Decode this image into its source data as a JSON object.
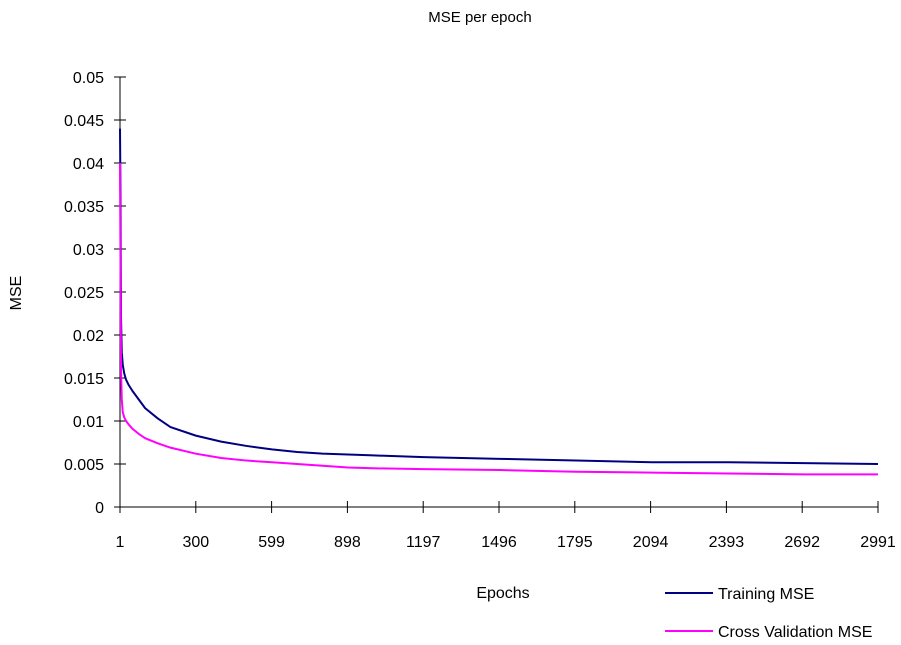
{
  "chart_data": {
    "type": "line",
    "title": "MSE per epoch",
    "xlabel": "Epochs",
    "ylabel": "MSE",
    "xlim": [
      1,
      2991
    ],
    "ylim": [
      0,
      0.05
    ],
    "x_ticks": [
      1,
      300,
      599,
      898,
      1197,
      1496,
      1795,
      2094,
      2393,
      2692,
      2991
    ],
    "y_ticks": [
      "0",
      "0.005",
      "0.01",
      "0.015",
      "0.02",
      "0.025",
      "0.03",
      "0.035",
      "0.04",
      "0.045",
      "0.05"
    ],
    "grid": false,
    "legend_position": "bottom-right",
    "series": [
      {
        "name": "Training MSE",
        "color": "#000080",
        "x": [
          1,
          3,
          5,
          8,
          12,
          18,
          25,
          35,
          50,
          75,
          100,
          150,
          200,
          300,
          400,
          500,
          600,
          700,
          800,
          900,
          1000,
          1200,
          1500,
          1800,
          2100,
          2400,
          2700,
          2991
        ],
        "y": [
          0.044,
          0.036,
          0.022,
          0.018,
          0.0165,
          0.0155,
          0.0148,
          0.0142,
          0.0135,
          0.0125,
          0.0115,
          0.0103,
          0.0093,
          0.0083,
          0.0076,
          0.0071,
          0.0067,
          0.0064,
          0.0062,
          0.0061,
          0.006,
          0.0058,
          0.0056,
          0.0054,
          0.0052,
          0.0052,
          0.0051,
          0.005
        ]
      },
      {
        "name": "Cross Validation MSE",
        "color": "#ff00ff",
        "x": [
          1,
          3,
          5,
          8,
          12,
          18,
          25,
          35,
          50,
          75,
          100,
          150,
          200,
          300,
          400,
          500,
          600,
          700,
          800,
          900,
          1000,
          1200,
          1500,
          1800,
          2100,
          2400,
          2700,
          2991
        ],
        "y": [
          0.04,
          0.028,
          0.016,
          0.0125,
          0.011,
          0.0104,
          0.01,
          0.0096,
          0.0091,
          0.0085,
          0.008,
          0.0074,
          0.0069,
          0.0062,
          0.0057,
          0.0054,
          0.0052,
          0.005,
          0.0048,
          0.0046,
          0.0045,
          0.0044,
          0.0043,
          0.0041,
          0.004,
          0.0039,
          0.0038,
          0.0038
        ]
      }
    ]
  }
}
